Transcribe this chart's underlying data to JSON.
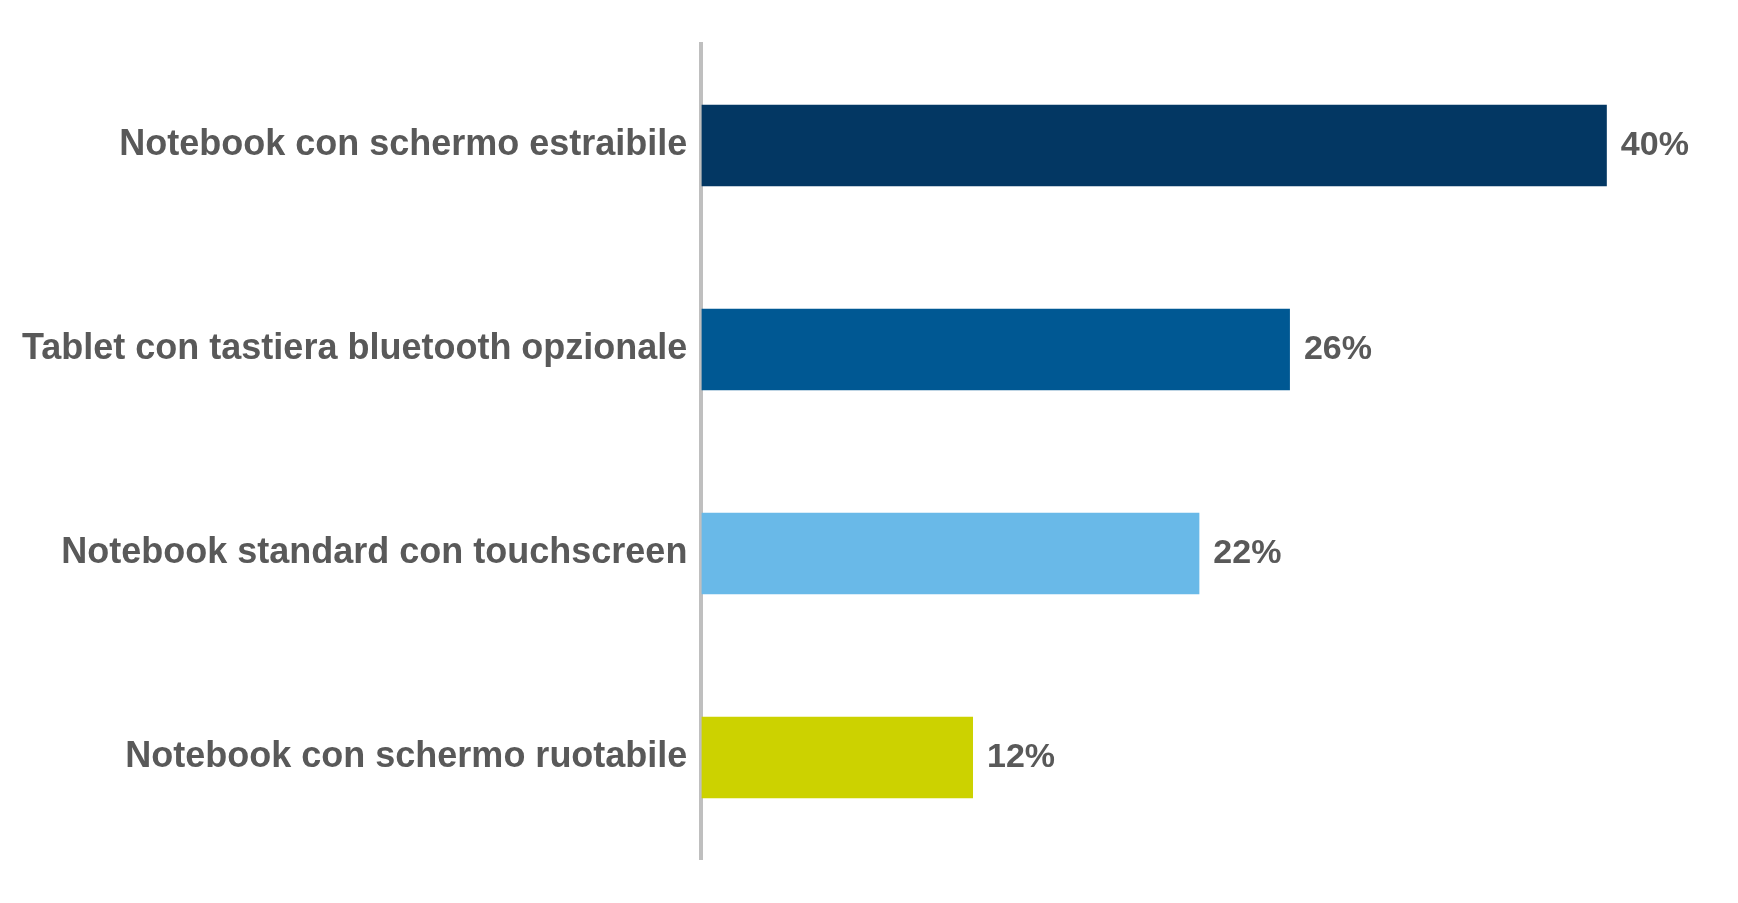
{
  "chart_data": {
    "type": "bar",
    "orientation": "horizontal",
    "categories": [
      "Notebook con schermo estraibile",
      "Tablet con tastiera bluetooth opzionale",
      "Notebook standard con touchscreen",
      "Notebook con schermo ruotabile"
    ],
    "values": [
      40,
      26,
      22,
      12
    ],
    "colors": [
      "#033763",
      "#005893",
      "#69b9e8",
      "#ccd200"
    ],
    "value_labels": [
      "40%",
      "26%",
      "22%",
      "12%"
    ],
    "grid": false,
    "legend": false
  }
}
